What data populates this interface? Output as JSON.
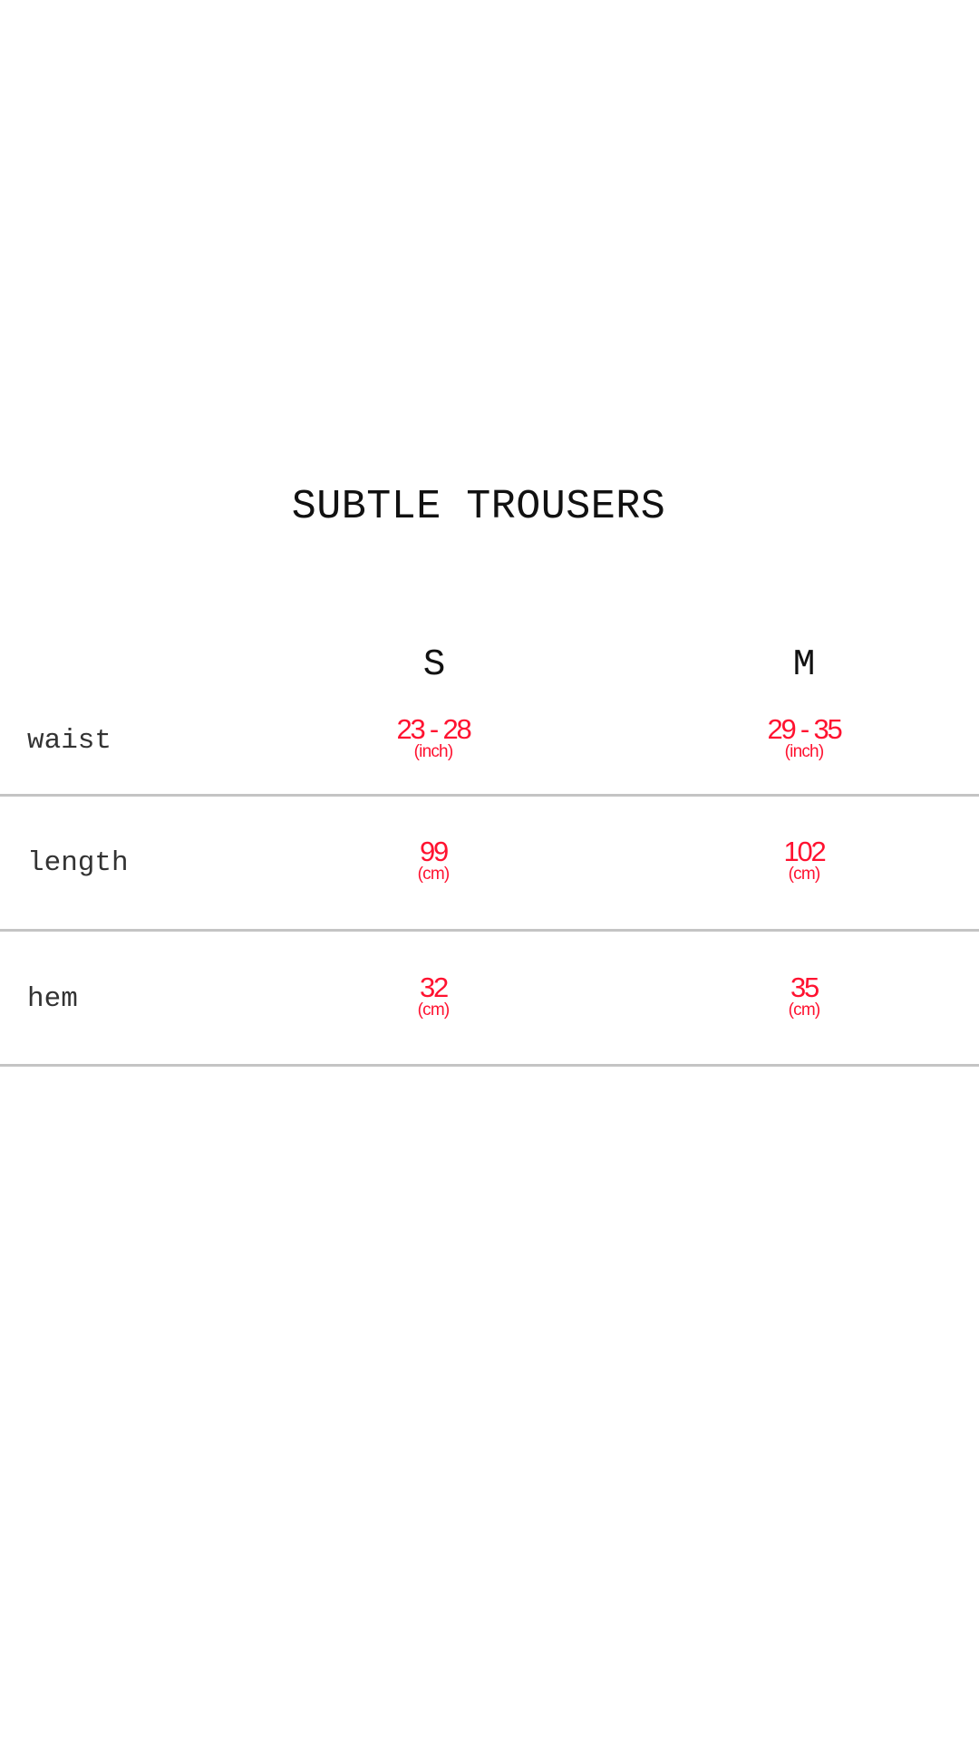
{
  "title": "SUBTLE TROUSERS",
  "sizes": [
    "S",
    "M"
  ],
  "rows": [
    {
      "label": "waist",
      "s": {
        "value": "23 - 28",
        "unit": "(inch)"
      },
      "m": {
        "value": "29 - 35",
        "unit": "(inch)"
      }
    },
    {
      "label": "length",
      "s": {
        "value": "99",
        "unit": "(cm)"
      },
      "m": {
        "value": "102",
        "unit": "(cm)"
      }
    },
    {
      "label": "hem",
      "s": {
        "value": "32",
        "unit": "(cm)"
      },
      "m": {
        "value": "35",
        "unit": "(cm)"
      }
    }
  ],
  "colors": {
    "value_text": "#ff1230",
    "label_text": "#333333",
    "divider": "#c4c4c4"
  }
}
